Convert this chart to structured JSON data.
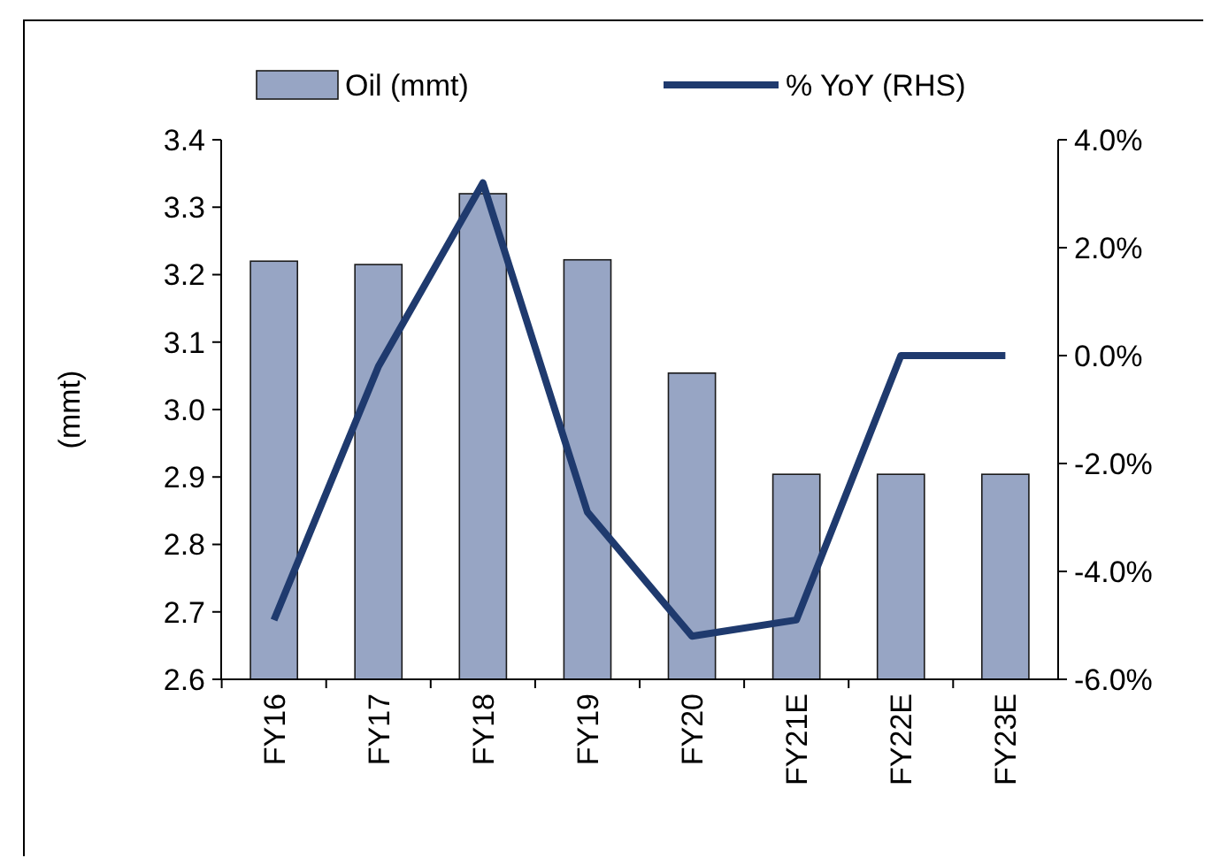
{
  "chart_data": {
    "type": "bar",
    "ylabel": "(mmt)",
    "categories": [
      "FY16",
      "FY17",
      "FY18",
      "FY19",
      "FY20",
      "FY21E",
      "FY22E",
      "FY23E"
    ],
    "series": [
      {
        "name": "Oil (mmt)",
        "color": "#97a5c4",
        "values": [
          3.22,
          3.215,
          3.32,
          3.222,
          3.054,
          2.904,
          2.904,
          2.904
        ]
      },
      {
        "name": "% YoY (RHS)",
        "type": "line",
        "axis": "y2",
        "color": "#1f3a6e",
        "values": [
          -4.9,
          -0.2,
          3.2,
          -2.9,
          -5.2,
          -4.9,
          0,
          0
        ]
      }
    ],
    "ylim": [
      2.6,
      3.4
    ],
    "yticks": [
      2.6,
      2.7,
      2.8,
      2.9,
      {
        "value": 3,
        "label": "3.0"
      },
      3.1,
      3.2,
      3.3,
      3.4
    ],
    "y2lim": [
      -6,
      4
    ],
    "y2ticks": [
      {
        "value": -6,
        "label": "-6.0%"
      },
      {
        "value": -4,
        "label": "-4.0%"
      },
      {
        "value": -2,
        "label": "-2.0%"
      },
      {
        "value": 0,
        "label": "0.0%"
      },
      {
        "value": 2,
        "label": "2.0%"
      },
      {
        "value": 4,
        "label": "4.0%"
      }
    ],
    "legend": "top",
    "grid": false,
    "marker": "none",
    "line_style": "solid"
  }
}
